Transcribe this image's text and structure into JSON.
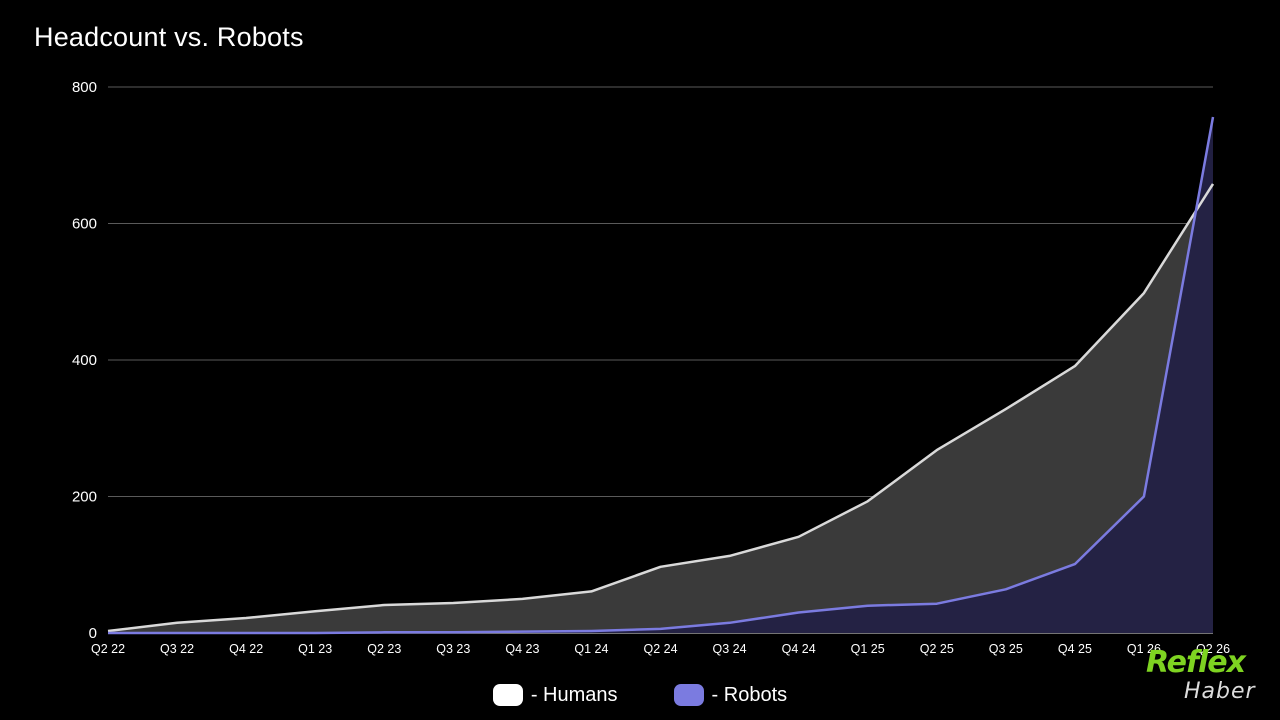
{
  "chart_data": {
    "type": "area",
    "title": "Headcount vs. Robots",
    "xlabel": "",
    "ylabel": "",
    "ylim": [
      0,
      800
    ],
    "yticks": [
      "0",
      "200",
      "400",
      "600",
      "800"
    ],
    "categories": [
      "Q2 22",
      "Q3 22",
      "Q4 22",
      "Q1 23",
      "Q2 23",
      "Q3 23",
      "Q4 23",
      "Q1 24",
      "Q2 24",
      "Q3 24",
      "Q4 24",
      "Q1 25",
      "Q2 25",
      "Q3 25",
      "Q4 25",
      "Q1 26",
      "Q2 26"
    ],
    "series": [
      {
        "name": "- Humans",
        "color": "#d9d9d9",
        "fill": "#3a3a3a",
        "values": [
          3,
          15,
          22,
          32,
          41,
          44,
          50,
          61,
          97,
          113,
          141,
          193,
          268,
          328,
          391,
          498,
          658
        ]
      },
      {
        "name": "- Robots",
        "color": "#7b7be0",
        "fill": "#232145",
        "values": [
          0,
          0,
          0,
          0,
          1,
          1,
          2,
          3,
          6,
          15,
          30,
          40,
          43,
          64,
          101,
          200,
          756
        ]
      }
    ],
    "grid": true,
    "legend_position": "bottom-center"
  },
  "legend": {
    "humans_label": "- Humans",
    "robots_label": "- Robots",
    "humans_color": "#ffffff",
    "robots_color": "#7b7be0"
  },
  "watermark": {
    "top_text": "Reflex",
    "bottom_text": "Haber"
  }
}
